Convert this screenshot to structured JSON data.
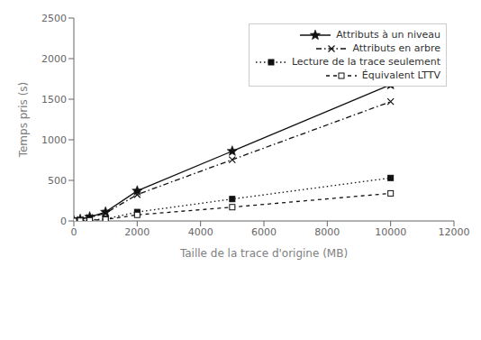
{
  "chart_data": {
    "type": "line",
    "x": [
      0,
      200,
      500,
      1000,
      2000,
      5000,
      10000
    ],
    "series": [
      {
        "name": "Attributs à un niveau",
        "color": "#111111",
        "values": [
          0,
          20,
          50,
          110,
          370,
          860,
          1680
        ],
        "marker": "star",
        "line_style": "solid"
      },
      {
        "name": "Attributs en arbre",
        "color": "#111111",
        "values": [
          0,
          18,
          42,
          95,
          325,
          755,
          1470
        ],
        "marker": "x",
        "line_style": "dashdot"
      },
      {
        "name": "Lecture de la trace seulement",
        "color": "#111111",
        "values": [
          0,
          5,
          12,
          25,
          110,
          270,
          530
        ],
        "marker": "square",
        "line_style": "dotted"
      },
      {
        "name": "Équivalent LTTV",
        "color": "#111111",
        "values": [
          0,
          3,
          8,
          18,
          75,
          170,
          340
        ],
        "marker": "open_square",
        "line_style": "dashed"
      }
    ],
    "xlabel": "Taille de la trace d'origine (MB)",
    "ylabel": "Temps pris (s)",
    "xlim": [
      0,
      12000
    ],
    "ylim": [
      0,
      2500
    ],
    "xticks": [
      0,
      2000,
      4000,
      6000,
      8000,
      10000,
      12000
    ],
    "yticks": [
      0,
      500,
      1000,
      1500,
      2000,
      2500
    ],
    "grid": false,
    "legend": "upper right"
  }
}
